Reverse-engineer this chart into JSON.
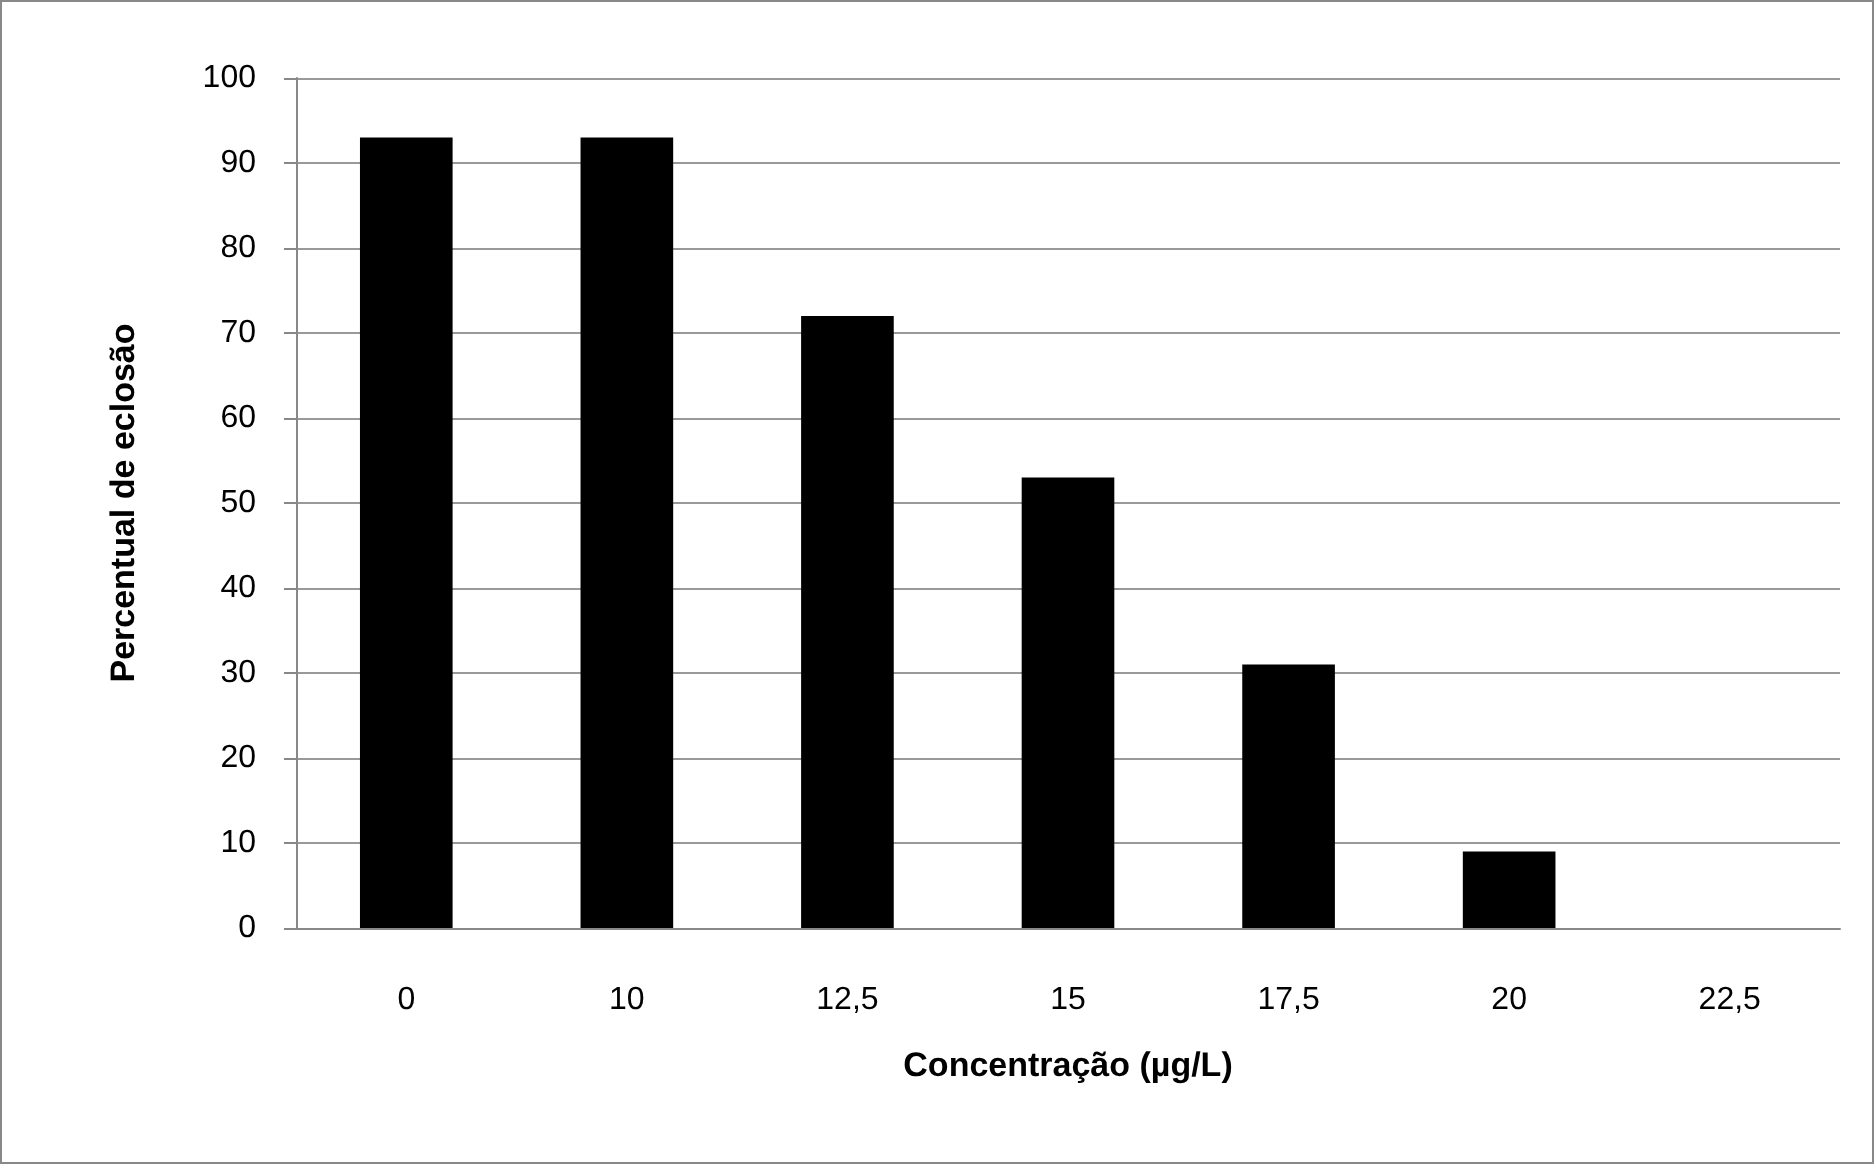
{
  "chart_data": {
    "type": "bar",
    "xlabel": "Concentração (µg/L)",
    "ylabel": "Percentual de eclosão",
    "categories": [
      "0",
      "10",
      "12,5",
      "15",
      "17,5",
      "20",
      "22,5"
    ],
    "values": [
      93,
      93,
      72,
      53,
      31,
      9,
      0
    ],
    "color": "#000000",
    "ylim": [
      0,
      100
    ],
    "yticks": [
      0,
      10,
      20,
      30,
      40,
      50,
      60,
      70,
      80,
      90,
      100
    ],
    "grid": "y"
  }
}
